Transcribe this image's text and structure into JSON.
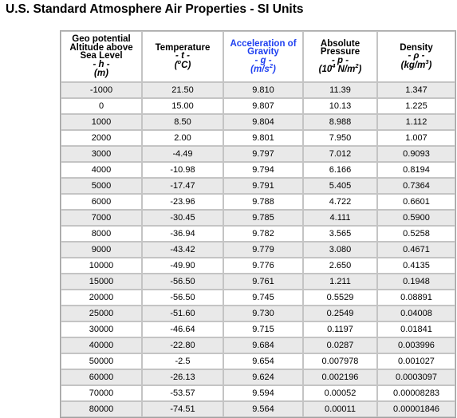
{
  "page": {
    "title": "U.S. Standard Atmosphere Air Properties - SI Units"
  },
  "table": {
    "headers": {
      "altitude": {
        "lines": [
          "Geo potential",
          "Altitude above",
          "Sea Level",
          "- h -"
        ],
        "unit": "(m)"
      },
      "temperature": {
        "lines": [
          "Temperature",
          "- t -"
        ],
        "unit_pre": "(",
        "unit_sup": "o",
        "unit_post": "C)"
      },
      "gravity": {
        "lines": [
          "Acceleration of",
          "Gravity",
          "- g -"
        ],
        "unit_pre": "(m/s",
        "unit_sup": "2",
        "unit_post": ")"
      },
      "pressure": {
        "lines": [
          "Absolute",
          "Pressure",
          "- p -"
        ],
        "unit_pre": "(10",
        "unit_sup": "4",
        "unit_post": " N/m",
        "unit_sup2": "2",
        "unit_post2": ")"
      },
      "density": {
        "lines": [
          "Density",
          "- ρ -"
        ],
        "unit_pre": "(kg/m",
        "unit_sup": "3",
        "unit_post": ")"
      }
    },
    "accent_color": "#1e3ff0",
    "stripe_color": "#e9e9e9",
    "rows": [
      [
        "-1000",
        "21.50",
        "9.810",
        "11.39",
        "1.347"
      ],
      [
        "0",
        "15.00",
        "9.807",
        "10.13",
        "1.225"
      ],
      [
        "1000",
        "8.50",
        "9.804",
        "8.988",
        "1.112"
      ],
      [
        "2000",
        "2.00",
        "9.801",
        "7.950",
        "1.007"
      ],
      [
        "3000",
        "-4.49",
        "9.797",
        "7.012",
        "0.9093"
      ],
      [
        "4000",
        "-10.98",
        "9.794",
        "6.166",
        "0.8194"
      ],
      [
        "5000",
        "-17.47",
        "9.791",
        "5.405",
        "0.7364"
      ],
      [
        "6000",
        "-23.96",
        "9.788",
        "4.722",
        "0.6601"
      ],
      [
        "7000",
        "-30.45",
        "9.785",
        "4.111",
        "0.5900"
      ],
      [
        "8000",
        "-36.94",
        "9.782",
        "3.565",
        "0.5258"
      ],
      [
        "9000",
        "-43.42",
        "9.779",
        "3.080",
        "0.4671"
      ],
      [
        "10000",
        "-49.90",
        "9.776",
        "2.650",
        "0.4135"
      ],
      [
        "15000",
        "-56.50",
        "9.761",
        "1.211",
        "0.1948"
      ],
      [
        "20000",
        "-56.50",
        "9.745",
        "0.5529",
        "0.08891"
      ],
      [
        "25000",
        "-51.60",
        "9.730",
        "0.2549",
        "0.04008"
      ],
      [
        "30000",
        "-46.64",
        "9.715",
        "0.1197",
        "0.01841"
      ],
      [
        "40000",
        "-22.80",
        "9.684",
        "0.0287",
        "0.003996"
      ],
      [
        "50000",
        "-2.5",
        "9.654",
        "0.007978",
        "0.001027"
      ],
      [
        "60000",
        "-26.13",
        "9.624",
        "0.002196",
        "0.0003097"
      ],
      [
        "70000",
        "-53.57",
        "9.594",
        "0.00052",
        "0.00008283"
      ],
      [
        "80000",
        "-74.51",
        "9.564",
        "0.00011",
        "0.00001846"
      ]
    ]
  }
}
